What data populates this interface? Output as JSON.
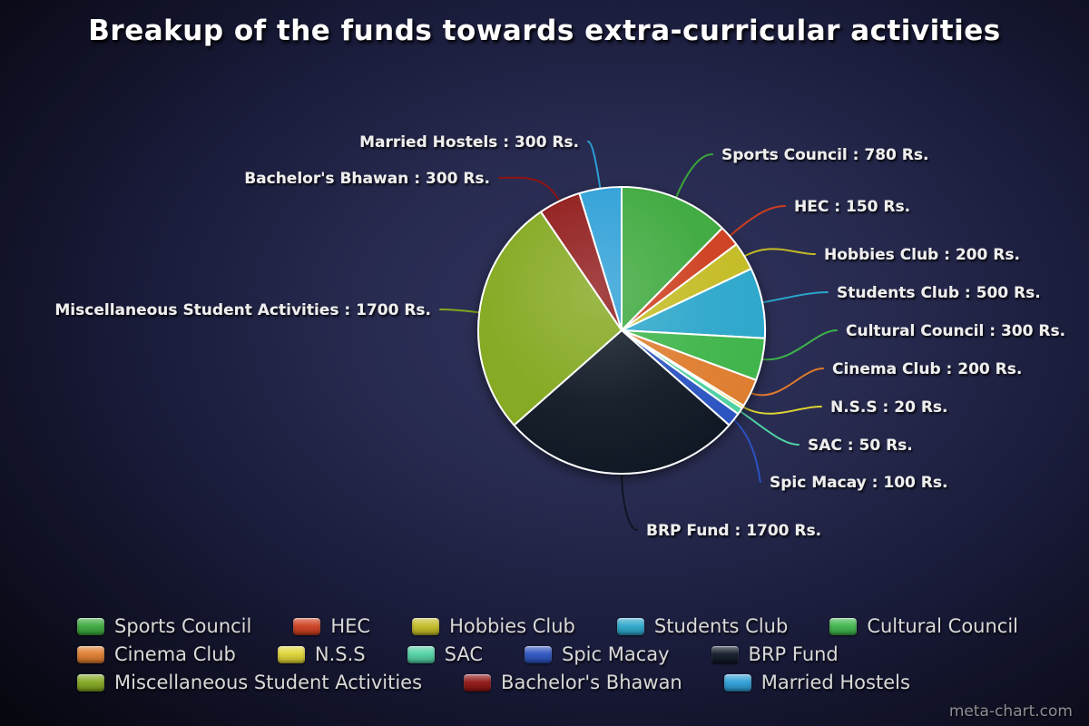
{
  "watermark": "meta-chart.com",
  "chart_data": {
    "type": "pie",
    "title": "Breakup of the funds towards extra-curricular activities",
    "unit": "Rs.",
    "total": 6300,
    "start_angle_deg": 0,
    "direction": "clockwise",
    "legend_position": "bottom",
    "slices": [
      {
        "name": "Sports Council",
        "value": 780,
        "color": "#3aa83a",
        "label": "Sports Council : 780 Rs."
      },
      {
        "name": "HEC",
        "value": 150,
        "color": "#cd3d1e",
        "label": "HEC : 150 Rs."
      },
      {
        "name": "Hobbies Club",
        "value": 200,
        "color": "#c3bb24",
        "label": "Hobbies Club : 200 Rs."
      },
      {
        "name": "Students Club",
        "value": 500,
        "color": "#2ba6cb",
        "label": "Students Club : 500 Rs."
      },
      {
        "name": "Cultural Council",
        "value": 300,
        "color": "#3db44a",
        "label": "Cultural Council : 300 Rs."
      },
      {
        "name": "Cinema Club",
        "value": 200,
        "color": "#de7b2d",
        "label": "Cinema Club : 200 Rs."
      },
      {
        "name": "N.S.S",
        "value": 20,
        "color": "#ded332",
        "label": "N.S.S : 20 Rs."
      },
      {
        "name": "SAC",
        "value": 50,
        "color": "#4fd0a2",
        "label": "SAC : 50 Rs."
      },
      {
        "name": "Spic Macay",
        "value": 100,
        "color": "#2a52c0",
        "label": "Spic Macay : 100 Rs."
      },
      {
        "name": "BRP Fund",
        "value": 1700,
        "color": "#0d1724",
        "label": "BRP Fund : 1700 Rs."
      },
      {
        "name": "Miscellaneous Student Activities",
        "value": 1700,
        "color": "#82a71e",
        "label": "Miscellaneous Student Activities : 1700 Rs."
      },
      {
        "name": "Bachelor's Bhawan",
        "value": 300,
        "color": "#8e1312",
        "label": "Bachelor's Bhawan : 300 Rs."
      },
      {
        "name": "Married Hostels",
        "value": 300,
        "color": "#2b9ed6",
        "label": "Married Hostels : 300 Rs."
      }
    ]
  }
}
